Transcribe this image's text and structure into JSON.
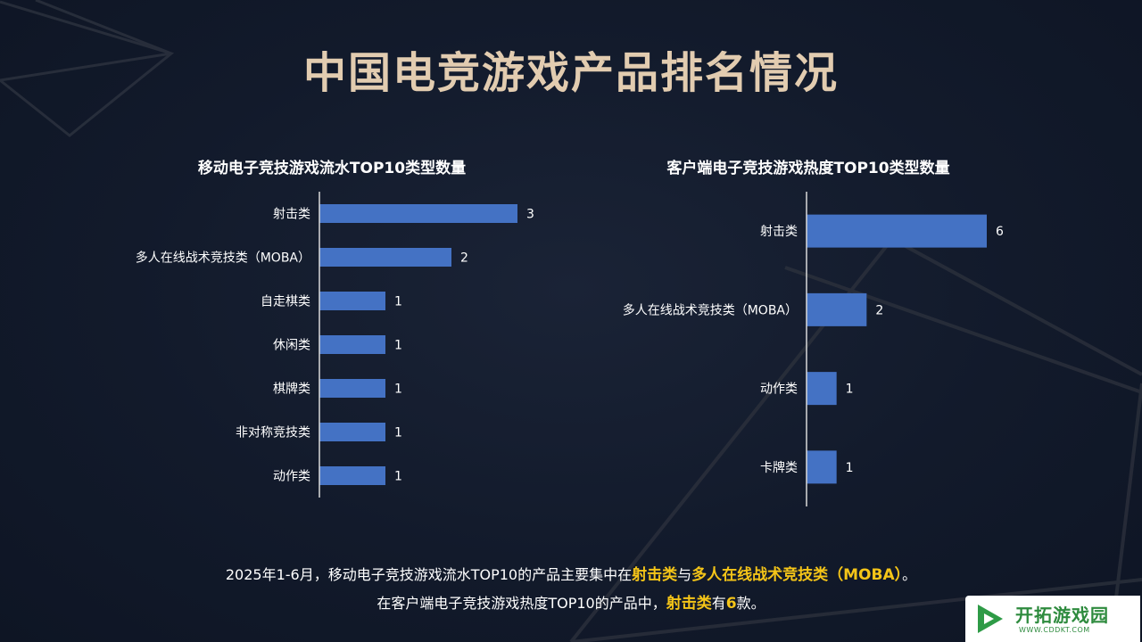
{
  "title": "中国电竞游戏产品排名情况",
  "chart_data": [
    {
      "type": "bar",
      "orientation": "horizontal",
      "title": "移动电子竞技游戏流水TOP10类型数量",
      "categories": [
        "射击类",
        "多人在线战术竞技类（MOBA）",
        "自走棋类",
        "休闲类",
        "棋牌类",
        "非对称竞技类",
        "动作类"
      ],
      "values": [
        3,
        2,
        1,
        1,
        1,
        1,
        1
      ],
      "xlim": [
        0,
        3
      ],
      "bar_color": "#4472c4",
      "grid": false,
      "data_labels": true
    },
    {
      "type": "bar",
      "orientation": "horizontal",
      "title": "客户端电子竞技游戏热度TOP10类型数量",
      "categories": [
        "射击类",
        "多人在线战术竞技类（MOBA）",
        "动作类",
        "卡牌类"
      ],
      "values": [
        6,
        2,
        1,
        1
      ],
      "xlim": [
        0,
        6
      ],
      "bar_color": "#4472c4",
      "grid": false,
      "data_labels": true
    }
  ],
  "summary": {
    "line1_a": "2025年1-6月，移动电子竞技游戏流水TOP10的产品主要集中在",
    "line1_hl1": "射击类",
    "line1_b": "与",
    "line1_hl2": "多人在线战术竞技类（MOBA）",
    "line1_c": "。",
    "line2_a": "在客户端电子竞技游戏热度TOP10的产品中，",
    "line2_hl1": "射击类",
    "line2_b": "有",
    "line2_hl2": "6",
    "line2_c": "款。"
  },
  "watermark": {
    "name": "开拓游戏园",
    "url": "WWW.CDDKT.COM"
  },
  "colors": {
    "background": "#121a2b",
    "title": "#e2ccb0",
    "highlight": "#f5c518",
    "bar": "#4472c4",
    "axis": "#d9d9d9"
  }
}
